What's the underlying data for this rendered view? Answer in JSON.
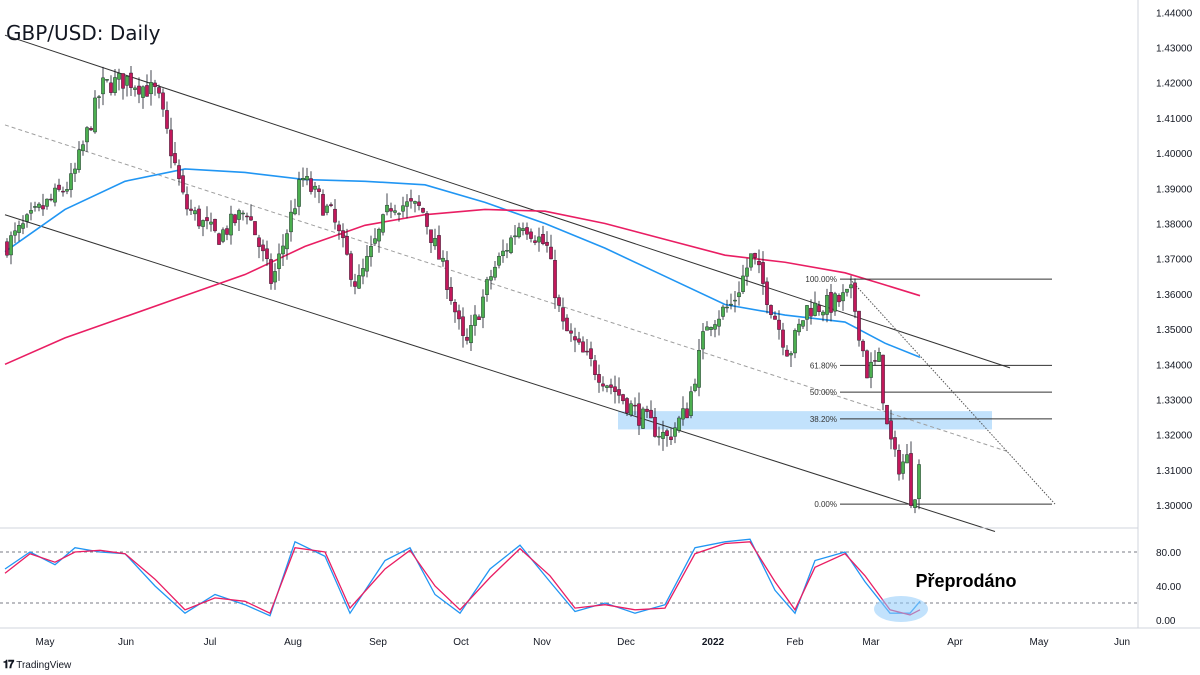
{
  "title": "GBP/USD: Daily",
  "brand": {
    "logo_icon": "tradingview-logo-icon",
    "label": "TradingView"
  },
  "annotation": "Přeprodáno",
  "colors": {
    "bull": "#4caf50",
    "bear": "#c2185b",
    "ma_blue": "#2196f3",
    "ma_pink": "#e91e63",
    "zone": "#90caf9"
  },
  "chart_data": {
    "type": "candlestick",
    "price_axis": {
      "ticks": [
        "1.44000",
        "1.43000",
        "1.42000",
        "1.41000",
        "1.40000",
        "1.39000",
        "1.38000",
        "1.37000",
        "1.36000",
        "1.35000",
        "1.34000",
        "1.33000",
        "1.32000",
        "1.31000",
        "1.30000"
      ],
      "range": [
        1.2935,
        1.4435
      ]
    },
    "time_axis": {
      "ticks": [
        "May",
        "Jun",
        "Jul",
        "Aug",
        "Sep",
        "Oct",
        "Nov",
        "Dec",
        "2022",
        "Feb",
        "Mar",
        "Apr",
        "May",
        "Jun"
      ]
    },
    "price_path": [
      [
        0,
        1.374
      ],
      [
        30,
        1.383
      ],
      [
        65,
        1.392
      ],
      [
        95,
        1.419
      ],
      [
        120,
        1.421
      ],
      [
        150,
        1.417
      ],
      [
        178,
        1.385
      ],
      [
        210,
        1.376
      ],
      [
        240,
        1.384
      ],
      [
        265,
        1.363
      ],
      [
        295,
        1.393
      ],
      [
        325,
        1.382
      ],
      [
        350,
        1.362
      ],
      [
        385,
        1.386
      ],
      [
        415,
        1.384
      ],
      [
        440,
        1.364
      ],
      [
        458,
        1.344
      ],
      [
        485,
        1.366
      ],
      [
        515,
        1.381
      ],
      [
        540,
        1.373
      ],
      [
        555,
        1.351
      ],
      [
        575,
        1.343
      ],
      [
        600,
        1.335
      ],
      [
        630,
        1.326
      ],
      [
        660,
        1.319
      ],
      [
        680,
        1.327
      ],
      [
        700,
        1.352
      ],
      [
        725,
        1.357
      ],
      [
        745,
        1.371
      ],
      [
        770,
        1.352
      ],
      [
        782,
        1.343
      ],
      [
        800,
        1.356
      ],
      [
        825,
        1.357
      ],
      [
        845,
        1.36
      ],
      [
        860,
        1.338
      ],
      [
        872,
        1.341
      ],
      [
        880,
        1.322
      ],
      [
        890,
        1.311
      ],
      [
        900,
        1.313
      ],
      [
        905,
        1.3
      ],
      [
        915,
        1.315
      ]
    ],
    "moving_averages": [
      {
        "color": "blue",
        "points": [
          [
            0,
            1.372
          ],
          [
            60,
            1.384
          ],
          [
            120,
            1.392
          ],
          [
            180,
            1.3955
          ],
          [
            240,
            1.3945
          ],
          [
            300,
            1.3925
          ],
          [
            360,
            1.392
          ],
          [
            420,
            1.391
          ],
          [
            480,
            1.386
          ],
          [
            540,
            1.38
          ],
          [
            600,
            1.373
          ],
          [
            660,
            1.365
          ],
          [
            720,
            1.357
          ],
          [
            780,
            1.354
          ],
          [
            840,
            1.352
          ],
          [
            880,
            1.346
          ],
          [
            915,
            1.342
          ]
        ]
      },
      {
        "color": "pink",
        "points": [
          [
            0,
            1.34
          ],
          [
            60,
            1.3475
          ],
          [
            120,
            1.3535
          ],
          [
            180,
            1.3595
          ],
          [
            240,
            1.3655
          ],
          [
            300,
            1.3735
          ],
          [
            360,
            1.3795
          ],
          [
            420,
            1.3825
          ],
          [
            480,
            1.384
          ],
          [
            540,
            1.3835
          ],
          [
            600,
            1.38
          ],
          [
            660,
            1.3755
          ],
          [
            720,
            1.371
          ],
          [
            780,
            1.369
          ],
          [
            840,
            1.366
          ],
          [
            875,
            1.363
          ],
          [
            915,
            1.3595
          ]
        ]
      }
    ],
    "channel": {
      "upper": [
        [
          0,
          1.4335
        ],
        [
          1005,
          1.339
        ]
      ],
      "lower": [
        [
          0,
          1.3825
        ],
        [
          990,
          1.2925
        ]
      ],
      "mid_dashed": [
        [
          0,
          1.408
        ],
        [
          1005,
          1.315
        ]
      ]
    },
    "fibonacci": [
      {
        "label": "100.00%",
        "price": 1.3642
      },
      {
        "label": "61.80%",
        "price": 1.3397
      },
      {
        "label": "50.00%",
        "price": 1.3321
      },
      {
        "label": "38.20%",
        "price": 1.3245
      },
      {
        "label": "0.00%",
        "price": 1.3003
      }
    ],
    "projection_line": [
      [
        845,
        1.3642
      ],
      [
        1050,
        1.3003
      ]
    ],
    "zone": {
      "price_top": 1.3267,
      "price_bottom": 1.3215
    },
    "stochastic": {
      "levels": [
        80,
        20
      ],
      "ticks": [
        "80.00",
        "40.00",
        "0.00"
      ],
      "k_path": [
        [
          0,
          60
        ],
        [
          25,
          80
        ],
        [
          50,
          65
        ],
        [
          70,
          85
        ],
        [
          95,
          80
        ],
        [
          120,
          78
        ],
        [
          150,
          40
        ],
        [
          180,
          8
        ],
        [
          210,
          30
        ],
        [
          240,
          18
        ],
        [
          265,
          5
        ],
        [
          290,
          92
        ],
        [
          320,
          75
        ],
        [
          345,
          8
        ],
        [
          380,
          70
        ],
        [
          405,
          85
        ],
        [
          430,
          30
        ],
        [
          455,
          8
        ],
        [
          485,
          60
        ],
        [
          515,
          88
        ],
        [
          545,
          45
        ],
        [
          570,
          10
        ],
        [
          600,
          20
        ],
        [
          630,
          8
        ],
        [
          660,
          18
        ],
        [
          690,
          85
        ],
        [
          720,
          92
        ],
        [
          745,
          95
        ],
        [
          770,
          35
        ],
        [
          790,
          8
        ],
        [
          810,
          70
        ],
        [
          840,
          80
        ],
        [
          860,
          45
        ],
        [
          885,
          8
        ],
        [
          905,
          8
        ],
        [
          915,
          22
        ]
      ],
      "d_path": [
        [
          0,
          55
        ],
        [
          25,
          78
        ],
        [
          50,
          68
        ],
        [
          70,
          80
        ],
        [
          95,
          82
        ],
        [
          120,
          78
        ],
        [
          150,
          48
        ],
        [
          180,
          12
        ],
        [
          210,
          26
        ],
        [
          240,
          22
        ],
        [
          265,
          8
        ],
        [
          290,
          85
        ],
        [
          320,
          80
        ],
        [
          345,
          14
        ],
        [
          380,
          60
        ],
        [
          405,
          82
        ],
        [
          430,
          40
        ],
        [
          455,
          12
        ],
        [
          485,
          50
        ],
        [
          515,
          84
        ],
        [
          545,
          52
        ],
        [
          570,
          14
        ],
        [
          600,
          18
        ],
        [
          630,
          12
        ],
        [
          660,
          14
        ],
        [
          690,
          78
        ],
        [
          720,
          90
        ],
        [
          745,
          92
        ],
        [
          770,
          45
        ],
        [
          790,
          12
        ],
        [
          810,
          62
        ],
        [
          840,
          78
        ],
        [
          860,
          52
        ],
        [
          885,
          12
        ],
        [
          905,
          6
        ],
        [
          915,
          12
        ]
      ]
    }
  }
}
